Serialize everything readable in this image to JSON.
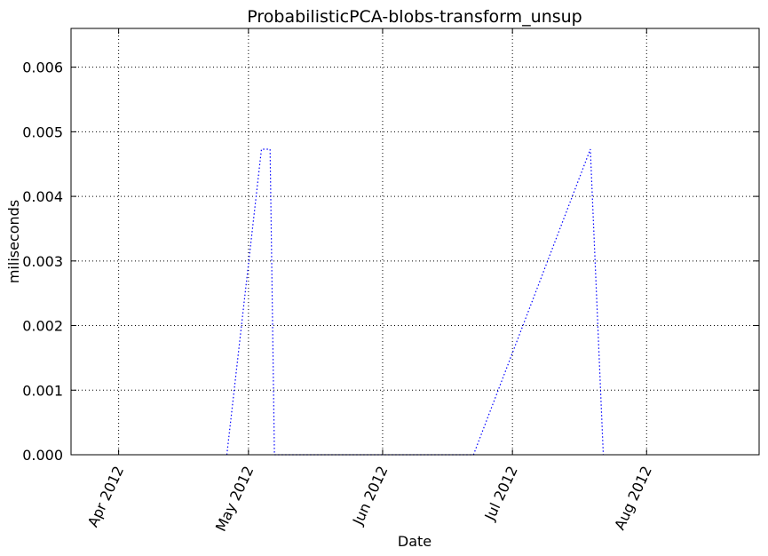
{
  "chart_data": {
    "type": "line",
    "title": "ProbabilisticPCA-blobs-transform_unsup",
    "xlabel": "Date",
    "ylabel": "miliseconds",
    "x_type": "date",
    "xlim": [
      "2012-03-21",
      "2012-08-27"
    ],
    "ylim": [
      0,
      0.0066
    ],
    "x_ticks": [
      {
        "value": "2012-04-01",
        "label": "Apr 2012"
      },
      {
        "value": "2012-05-01",
        "label": "May 2012"
      },
      {
        "value": "2012-06-01",
        "label": "Jun 2012"
      },
      {
        "value": "2012-07-01",
        "label": "Jul 2012"
      },
      {
        "value": "2012-08-01",
        "label": "Aug 2012"
      }
    ],
    "y_ticks": [
      {
        "value": 0.0,
        "label": "0.000"
      },
      {
        "value": 0.001,
        "label": "0.001"
      },
      {
        "value": 0.002,
        "label": "0.002"
      },
      {
        "value": 0.003,
        "label": "0.003"
      },
      {
        "value": 0.004,
        "label": "0.004"
      },
      {
        "value": 0.005,
        "label": "0.005"
      },
      {
        "value": 0.006,
        "label": "0.006"
      }
    ],
    "grid": true,
    "series": [
      {
        "color": "#0000ff",
        "style": "dotted",
        "x": [
          "2012-04-26",
          "2012-05-04",
          "2012-05-06",
          "2012-05-07",
          "2012-06-22",
          "2012-07-19",
          "2012-07-22"
        ],
        "y": [
          0.0,
          0.00473,
          0.00473,
          0.0,
          0.0,
          0.00473,
          0.0
        ]
      }
    ]
  }
}
